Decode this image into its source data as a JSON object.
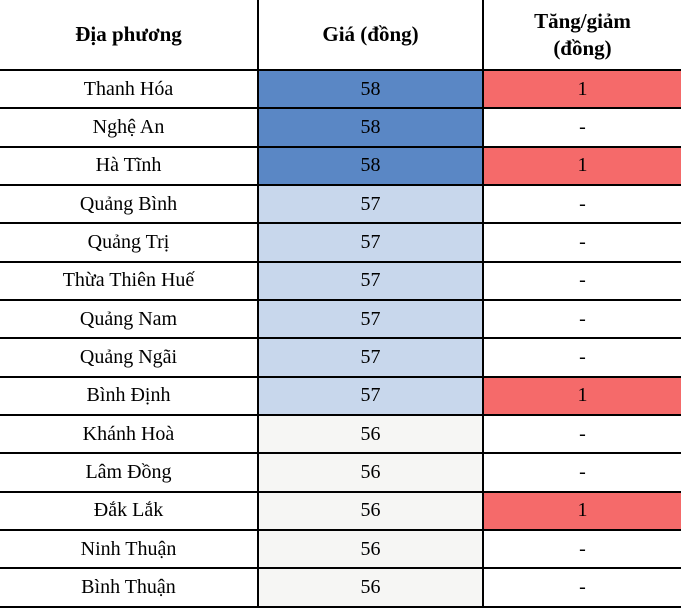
{
  "chart_data": {
    "type": "table",
    "columns": [
      "Địa phương",
      "Giá (đồng)",
      "Tăng/giảm (đồng)"
    ],
    "rows": [
      {
        "locality": "Thanh Hóa",
        "price": "58",
        "change": "1",
        "price_level": "high",
        "change_type": "up"
      },
      {
        "locality": "Nghệ An",
        "price": "58",
        "change": "-",
        "price_level": "high",
        "change_type": "flat"
      },
      {
        "locality": "Hà Tĩnh",
        "price": "58",
        "change": "1",
        "price_level": "high",
        "change_type": "up"
      },
      {
        "locality": "Quảng Bình",
        "price": "57",
        "change": "-",
        "price_level": "mid",
        "change_type": "flat"
      },
      {
        "locality": "Quảng Trị",
        "price": "57",
        "change": "-",
        "price_level": "mid",
        "change_type": "flat"
      },
      {
        "locality": "Thừa Thiên Huế",
        "price": "57",
        "change": "-",
        "price_level": "mid",
        "change_type": "flat"
      },
      {
        "locality": "Quảng Nam",
        "price": "57",
        "change": "-",
        "price_level": "mid",
        "change_type": "flat"
      },
      {
        "locality": "Quảng Ngãi",
        "price": "57",
        "change": "-",
        "price_level": "mid",
        "change_type": "flat"
      },
      {
        "locality": "Bình Định",
        "price": "57",
        "change": "1",
        "price_level": "mid",
        "change_type": "up"
      },
      {
        "locality": "Khánh Hoà",
        "price": "56",
        "change": "-",
        "price_level": "low",
        "change_type": "flat"
      },
      {
        "locality": "Lâm Đồng",
        "price": "56",
        "change": "-",
        "price_level": "low",
        "change_type": "flat"
      },
      {
        "locality": "Đắk Lắk",
        "price": "56",
        "change": "1",
        "price_level": "low",
        "change_type": "up"
      },
      {
        "locality": "Ninh Thuận",
        "price": "56",
        "change": "-",
        "price_level": "low",
        "change_type": "flat"
      },
      {
        "locality": "Bình Thuận",
        "price": "56",
        "change": "-",
        "price_level": "low",
        "change_type": "flat"
      }
    ]
  },
  "colors": {
    "price_high": "#5A87C5",
    "price_mid": "#C8D7EC",
    "price_low": "#F6F6F4",
    "change_up_bg": "#F56A6A",
    "change_flat_bg": "#FFFFFF",
    "border": "#000000",
    "text": "#000000"
  }
}
